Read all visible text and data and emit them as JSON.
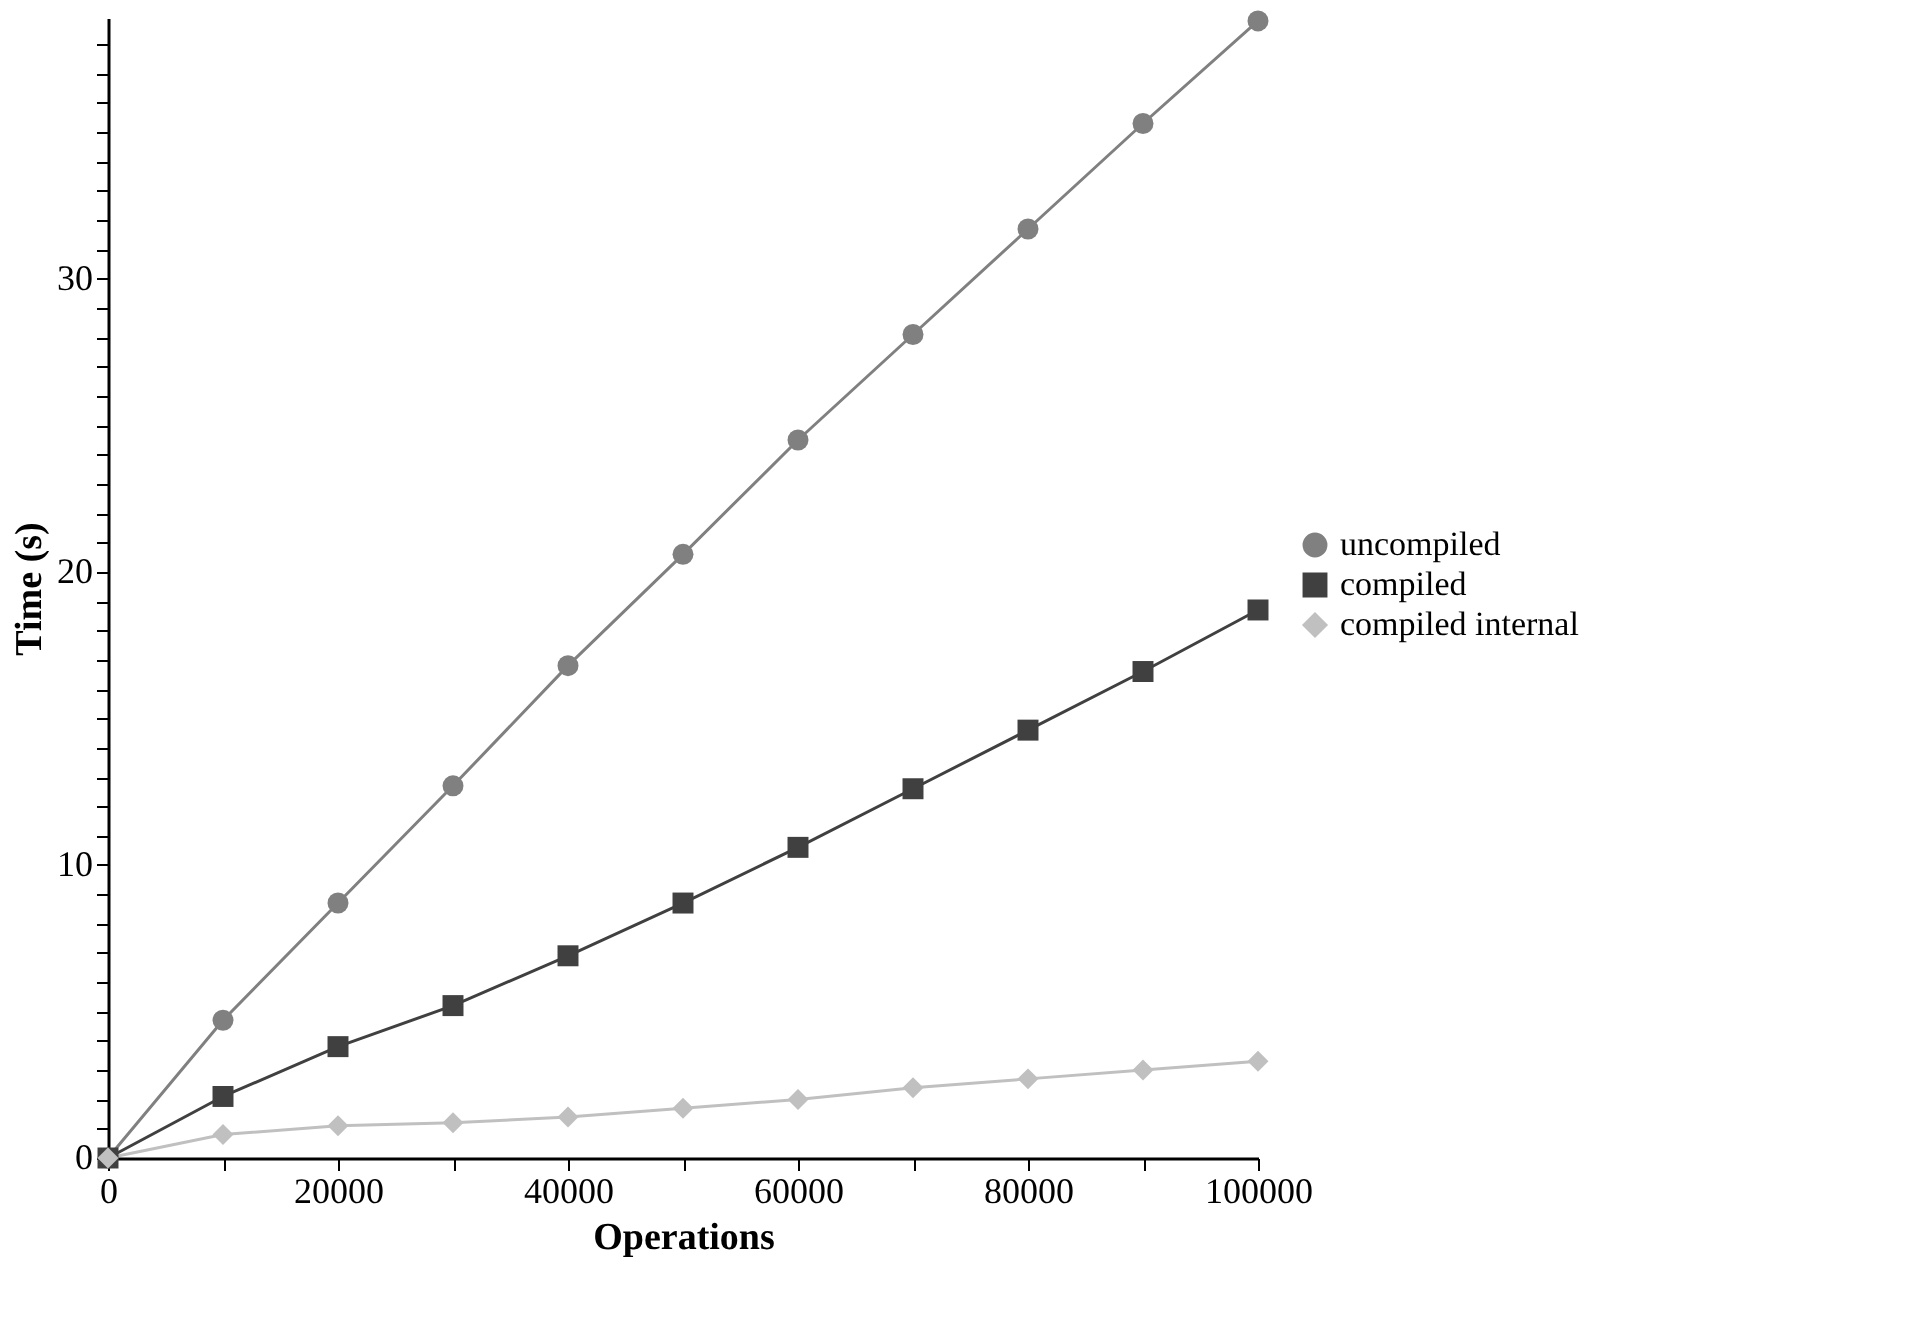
{
  "chart_data": {
    "type": "line",
    "xlabel": "Operations",
    "ylabel": "Time (s)",
    "x": [
      0,
      10000,
      20000,
      30000,
      40000,
      50000,
      60000,
      70000,
      80000,
      90000,
      100000
    ],
    "series": [
      {
        "name": "uncompiled",
        "color": "#808080",
        "marker": "circle",
        "values": [
          0,
          4.7,
          8.7,
          12.7,
          16.8,
          20.6,
          24.5,
          28.1,
          31.7,
          35.3,
          38.8
        ]
      },
      {
        "name": "compiled",
        "color": "#404040",
        "marker": "square",
        "values": [
          0,
          2.1,
          3.8,
          5.2,
          6.9,
          8.7,
          10.6,
          12.6,
          14.6,
          16.6,
          18.7
        ]
      },
      {
        "name": "compiled internal",
        "color": "#c0c0c0",
        "marker": "diamond",
        "values": [
          0,
          0.8,
          1.1,
          1.2,
          1.4,
          1.7,
          2.0,
          2.4,
          2.7,
          3.0,
          3.3
        ]
      }
    ],
    "xlim": [
      0,
      100000
    ],
    "xticks": [
      0,
      {
        "value": 10000,
        "label": null
      },
      20000,
      {
        "value": 30000,
        "label": null
      },
      40000,
      {
        "value": 50000,
        "label": null
      },
      60000,
      {
        "value": 70000,
        "label": null
      },
      80000,
      {
        "value": 90000,
        "label": null
      },
      100000
    ],
    "ylim": [
      0,
      38.9
    ],
    "yticks": [
      0,
      {
        "value": 1,
        "label": null
      },
      {
        "value": 2,
        "label": null
      },
      {
        "value": 3,
        "label": null
      },
      {
        "value": 4,
        "label": null
      },
      {
        "value": 5,
        "label": null
      },
      {
        "value": 6,
        "label": null
      },
      {
        "value": 7,
        "label": null
      },
      {
        "value": 8,
        "label": null
      },
      {
        "value": 9,
        "label": null
      },
      10,
      {
        "value": 11,
        "label": null
      },
      {
        "value": 12,
        "label": null
      },
      {
        "value": 13,
        "label": null
      },
      {
        "value": 14,
        "label": null
      },
      {
        "value": 15,
        "label": null
      },
      {
        "value": 16,
        "label": null
      },
      {
        "value": 17,
        "label": null
      },
      {
        "value": 18,
        "label": null
      },
      {
        "value": 19,
        "label": null
      },
      20,
      {
        "value": 21,
        "label": null
      },
      {
        "value": 22,
        "label": null
      },
      {
        "value": 23,
        "label": null
      },
      {
        "value": 24,
        "label": null
      },
      {
        "value": 25,
        "label": null
      },
      {
        "value": 26,
        "label": null
      },
      {
        "value": 27,
        "label": null
      },
      {
        "value": 28,
        "label": null
      },
      {
        "value": 29,
        "label": null
      },
      30,
      {
        "value": 31,
        "label": null
      },
      {
        "value": 32,
        "label": null
      },
      {
        "value": 33,
        "label": null
      },
      {
        "value": 34,
        "label": null
      },
      {
        "value": 35,
        "label": null
      },
      {
        "value": 36,
        "label": null
      },
      {
        "value": 37,
        "label": null
      },
      {
        "value": 38,
        "label": null
      }
    ],
    "grid": false,
    "legend": "right",
    "line_style": "solid"
  }
}
